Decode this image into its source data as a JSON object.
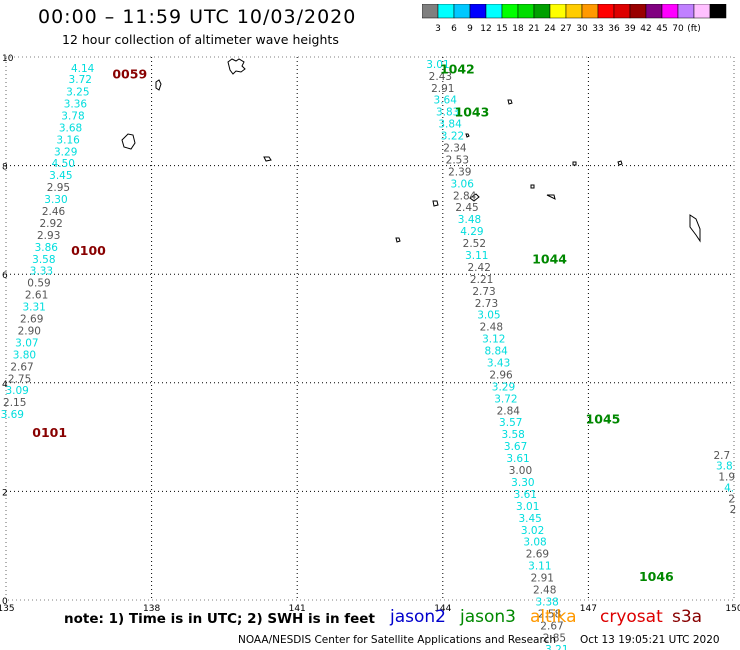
{
  "header": {
    "title": "00:00 – 11:59 UTC 10/03/2020",
    "subtitle": "12 hour collection of altimeter wave heights"
  },
  "colorbar": {
    "colors": [
      "#7f7f7f",
      "#00ffff",
      "#00c8ff",
      "#0000ff",
      "#00ffff",
      "#00ff00",
      "#00dd00",
      "#00a000",
      "#ffff00",
      "#ffcc00",
      "#ff9900",
      "#ff0000",
      "#dd0000",
      "#990000",
      "#800080",
      "#ff00ff",
      "#c080ff",
      "#ffc0ff",
      "#000000"
    ],
    "labels": [
      "3",
      "6",
      "9",
      "12",
      "15",
      "18",
      "21",
      "24",
      "27",
      "30",
      "33",
      "36",
      "39",
      "42",
      "45",
      "70",
      "(ft)"
    ]
  },
  "footer": {
    "note": "note:  1) Time is in UTC;  2) SWH is in feet",
    "satellites": [
      {
        "name": "jason2",
        "color": "#0000cc"
      },
      {
        "name": "jason3",
        "color": "#008800"
      },
      {
        "name": "altika",
        "color": "#ff9900"
      },
      {
        "name": "cryosat",
        "color": "#dd0000"
      },
      {
        "name": "s3a",
        "color": "#880000"
      }
    ],
    "credit": "NOAA/NESDIS Center for Satellite Applications and Research",
    "timestamp": "Oct 13 19:05:21 UTC 2020"
  },
  "chart_data": {
    "type": "scatter",
    "xlim": [
      135,
      150
    ],
    "ylim": [
      0,
      10
    ],
    "xticks": [
      135,
      138,
      141,
      144,
      147,
      150
    ],
    "yticks": [
      0,
      2,
      4,
      6,
      8,
      10
    ],
    "grid": true,
    "track_times": [
      {
        "label": "0059",
        "x": 137.55,
        "y": 9.6,
        "color": "#880000"
      },
      {
        "label": "0100",
        "x": 136.7,
        "y": 6.35,
        "color": "#880000"
      },
      {
        "label": "0101",
        "x": 135.9,
        "y": 3.0,
        "color": "#880000"
      },
      {
        "label": "1042",
        "x": 144.3,
        "y": 9.7,
        "color": "#008800"
      },
      {
        "label": "1043",
        "x": 144.6,
        "y": 8.9,
        "color": "#008800"
      },
      {
        "label": "1044",
        "x": 146.2,
        "y": 6.2,
        "color": "#008800"
      },
      {
        "label": "1045",
        "x": 147.3,
        "y": 3.25,
        "color": "#008800"
      },
      {
        "label": "1046",
        "x": 148.4,
        "y": 0.35,
        "color": "#008800"
      }
    ],
    "series": [
      {
        "name": "track 0059-0101",
        "points": [
          {
            "x": 136.58,
            "y": 9.72,
            "v": "4.14",
            "c": "#00dddd"
          },
          {
            "x": 136.53,
            "y": 9.52,
            "v": "3.72",
            "c": "#00dddd"
          },
          {
            "x": 136.48,
            "y": 9.29,
            "v": "3.25",
            "c": "#00dddd"
          },
          {
            "x": 136.43,
            "y": 9.07,
            "v": "3.36",
            "c": "#00dddd"
          },
          {
            "x": 136.38,
            "y": 8.85,
            "v": "3.78",
            "c": "#00dddd"
          },
          {
            "x": 136.33,
            "y": 8.63,
            "v": "3.68",
            "c": "#00dddd"
          },
          {
            "x": 136.28,
            "y": 8.41,
            "v": "3.16",
            "c": "#00dddd"
          },
          {
            "x": 136.23,
            "y": 8.19,
            "v": "3.29",
            "c": "#00dddd"
          },
          {
            "x": 136.18,
            "y": 7.97,
            "v": "4.50",
            "c": "#00dddd"
          },
          {
            "x": 136.13,
            "y": 7.75,
            "v": "3.45",
            "c": "#00dddd"
          },
          {
            "x": 136.08,
            "y": 7.53,
            "v": "2.95",
            "c": "#555555"
          },
          {
            "x": 136.03,
            "y": 7.31,
            "v": "3.30",
            "c": "#00dddd"
          },
          {
            "x": 135.98,
            "y": 7.09,
            "v": "2.46",
            "c": "#555555"
          },
          {
            "x": 135.93,
            "y": 6.87,
            "v": "2.92",
            "c": "#555555"
          },
          {
            "x": 135.88,
            "y": 6.65,
            "v": "2.93",
            "c": "#555555"
          },
          {
            "x": 135.83,
            "y": 6.43,
            "v": "3.86",
            "c": "#00dddd"
          },
          {
            "x": 135.78,
            "y": 6.21,
            "v": "3.58",
            "c": "#00dddd"
          },
          {
            "x": 135.73,
            "y": 5.99,
            "v": "3.33",
            "c": "#00dddd"
          },
          {
            "x": 135.68,
            "y": 5.77,
            "v": "0.59",
            "c": "#555555"
          },
          {
            "x": 135.63,
            "y": 5.55,
            "v": "2.61",
            "c": "#555555"
          },
          {
            "x": 135.58,
            "y": 5.33,
            "v": "3.31",
            "c": "#00dddd"
          },
          {
            "x": 135.53,
            "y": 5.11,
            "v": "2.69",
            "c": "#555555"
          },
          {
            "x": 135.48,
            "y": 4.89,
            "v": "2.90",
            "c": "#555555"
          },
          {
            "x": 135.43,
            "y": 4.67,
            "v": "3.07",
            "c": "#00dddd"
          },
          {
            "x": 135.38,
            "y": 4.45,
            "v": "3.80",
            "c": "#00dddd"
          },
          {
            "x": 135.33,
            "y": 4.23,
            "v": "2.67",
            "c": "#555555"
          },
          {
            "x": 135.28,
            "y": 4.01,
            "v": "2.75",
            "c": "#555555"
          },
          {
            "x": 135.23,
            "y": 3.79,
            "v": "3.09",
            "c": "#00dddd"
          },
          {
            "x": 135.18,
            "y": 3.57,
            "v": "2.15",
            "c": "#555555"
          },
          {
            "x": 135.13,
            "y": 3.35,
            "v": "3.69",
            "c": "#00dddd"
          }
        ]
      },
      {
        "name": "track 1042-1046",
        "points": [
          {
            "x": 143.9,
            "y": 9.8,
            "v": "3.01",
            "c": "#00dddd"
          },
          {
            "x": 143.95,
            "y": 9.58,
            "v": "2.43",
            "c": "#555555"
          },
          {
            "x": 144.0,
            "y": 9.36,
            "v": "2.91",
            "c": "#555555"
          },
          {
            "x": 144.05,
            "y": 9.14,
            "v": "3.64",
            "c": "#00dddd"
          },
          {
            "x": 144.1,
            "y": 8.92,
            "v": "3.83",
            "c": "#00dddd"
          },
          {
            "x": 144.15,
            "y": 8.7,
            "v": "3.84",
            "c": "#00dddd"
          },
          {
            "x": 144.2,
            "y": 8.48,
            "v": "3.22",
            "c": "#00dddd"
          },
          {
            "x": 144.25,
            "y": 8.26,
            "v": "2.34",
            "c": "#555555"
          },
          {
            "x": 144.3,
            "y": 8.04,
            "v": "2.53",
            "c": "#555555"
          },
          {
            "x": 144.35,
            "y": 7.82,
            "v": "2.39",
            "c": "#555555"
          },
          {
            "x": 144.4,
            "y": 7.6,
            "v": "3.06",
            "c": "#00dddd"
          },
          {
            "x": 144.45,
            "y": 7.38,
            "v": "2.84",
            "c": "#555555"
          },
          {
            "x": 144.5,
            "y": 7.16,
            "v": "2.45",
            "c": "#555555"
          },
          {
            "x": 144.55,
            "y": 6.94,
            "v": "3.48",
            "c": "#00dddd"
          },
          {
            "x": 144.6,
            "y": 6.72,
            "v": "4.29",
            "c": "#00dddd"
          },
          {
            "x": 144.65,
            "y": 6.5,
            "v": "2.52",
            "c": "#555555"
          },
          {
            "x": 144.7,
            "y": 6.28,
            "v": "3.11",
            "c": "#00dddd"
          },
          {
            "x": 144.75,
            "y": 6.06,
            "v": "2.42",
            "c": "#555555"
          },
          {
            "x": 144.8,
            "y": 5.84,
            "v": "2.21",
            "c": "#555555"
          },
          {
            "x": 144.85,
            "y": 5.62,
            "v": "2.73",
            "c": "#555555"
          },
          {
            "x": 144.9,
            "y": 5.4,
            "v": "2.73",
            "c": "#555555"
          },
          {
            "x": 144.95,
            "y": 5.18,
            "v": "3.05",
            "c": "#00dddd"
          },
          {
            "x": 145.0,
            "y": 4.96,
            "v": "2.48",
            "c": "#555555"
          },
          {
            "x": 145.05,
            "y": 4.74,
            "v": "3.12",
            "c": "#00dddd"
          },
          {
            "x": 145.1,
            "y": 4.52,
            "v": "8.84",
            "c": "#00dddd"
          },
          {
            "x": 145.15,
            "y": 4.3,
            "v": "3.43",
            "c": "#00dddd"
          },
          {
            "x": 145.2,
            "y": 4.08,
            "v": "2.96",
            "c": "#555555"
          },
          {
            "x": 145.25,
            "y": 3.86,
            "v": "3.29",
            "c": "#00dddd"
          },
          {
            "x": 145.3,
            "y": 3.64,
            "v": "3.72",
            "c": "#00dddd"
          },
          {
            "x": 145.35,
            "y": 3.42,
            "v": "2.84",
            "c": "#555555"
          },
          {
            "x": 145.4,
            "y": 3.2,
            "v": "3.57",
            "c": "#00dddd"
          },
          {
            "x": 145.45,
            "y": 2.98,
            "v": "3.58",
            "c": "#00dddd"
          },
          {
            "x": 145.5,
            "y": 2.76,
            "v": "3.67",
            "c": "#00dddd"
          },
          {
            "x": 145.55,
            "y": 2.54,
            "v": "3.61",
            "c": "#00dddd"
          },
          {
            "x": 145.6,
            "y": 2.32,
            "v": "3.00",
            "c": "#555555"
          },
          {
            "x": 145.65,
            "y": 2.1,
            "v": "3.30",
            "c": "#00dddd"
          },
          {
            "x": 145.7,
            "y": 1.88,
            "v": "3.61",
            "c": "#00dddd"
          },
          {
            "x": 145.75,
            "y": 1.66,
            "v": "3.01",
            "c": "#00dddd"
          },
          {
            "x": 145.8,
            "y": 1.44,
            "v": "3.45",
            "c": "#00dddd"
          },
          {
            "x": 145.85,
            "y": 1.22,
            "v": "3.02",
            "c": "#00dddd"
          },
          {
            "x": 145.9,
            "y": 1.0,
            "v": "3.08",
            "c": "#00dddd"
          },
          {
            "x": 145.95,
            "y": 0.78,
            "v": "2.69",
            "c": "#555555"
          },
          {
            "x": 146.0,
            "y": 0.56,
            "v": "3.11",
            "c": "#00dddd"
          },
          {
            "x": 146.05,
            "y": 0.34,
            "v": "2.91",
            "c": "#555555"
          },
          {
            "x": 146.1,
            "y": 0.12,
            "v": "2.48",
            "c": "#555555"
          },
          {
            "x": 146.15,
            "y": -0.1,
            "v": "3.38",
            "c": "#00dddd"
          },
          {
            "x": 146.2,
            "y": -0.32,
            "v": "2.58",
            "c": "#555555"
          },
          {
            "x": 146.25,
            "y": -0.54,
            "v": "2.67",
            "c": "#555555"
          },
          {
            "x": 146.3,
            "y": -0.76,
            "v": "2.85",
            "c": "#555555"
          },
          {
            "x": 146.35,
            "y": -0.98,
            "v": "3.21",
            "c": "#00dddd"
          }
        ]
      },
      {
        "name": "track right edge",
        "points": [
          {
            "x": 149.75,
            "y": 2.6,
            "v": "2.7",
            "c": "#555555"
          },
          {
            "x": 149.8,
            "y": 2.4,
            "v": "3.8",
            "c": "#00dddd"
          },
          {
            "x": 149.85,
            "y": 2.2,
            "v": "1.9",
            "c": "#555555"
          },
          {
            "x": 149.9,
            "y": 2.0,
            "v": "4.",
            "c": "#00dddd"
          },
          {
            "x": 149.95,
            "y": 1.8,
            "v": "2",
            "c": "#555555"
          },
          {
            "x": 149.98,
            "y": 1.6,
            "v": "2",
            "c": "#555555"
          }
        ]
      }
    ]
  }
}
